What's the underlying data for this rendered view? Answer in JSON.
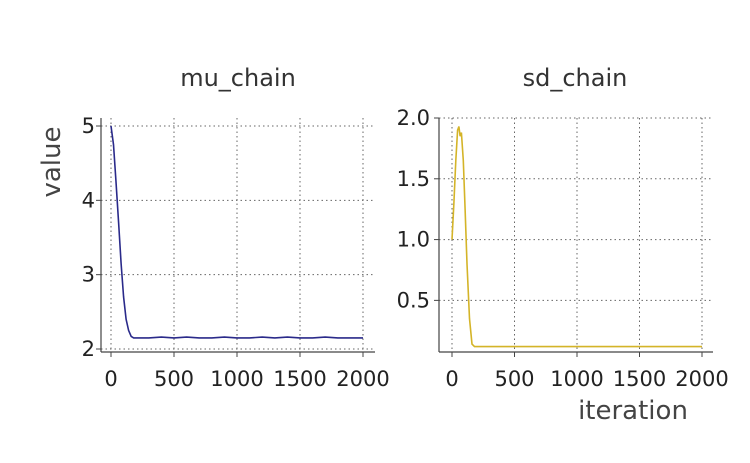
{
  "chart_data": [
    {
      "type": "line",
      "title": "mu_chain",
      "xlabel": "",
      "ylabel": "value",
      "xlim": [
        0,
        2000
      ],
      "ylim": [
        2,
        5
      ],
      "x_ticks": [
        0,
        500,
        1000,
        1500,
        2000
      ],
      "y_ticks": [
        2,
        3,
        4,
        5
      ],
      "grid": true,
      "color": "#2a2a8a",
      "series": [
        {
          "x": [
            0,
            20,
            40,
            60,
            80,
            100,
            120,
            140,
            160,
            180,
            200,
            300,
            400,
            500,
            600,
            700,
            800,
            900,
            1000,
            1100,
            1200,
            1300,
            1400,
            1500,
            1600,
            1700,
            1800,
            1900,
            2000
          ],
          "values": [
            5.0,
            4.75,
            4.25,
            3.7,
            3.15,
            2.7,
            2.4,
            2.25,
            2.17,
            2.15,
            2.15,
            2.15,
            2.16,
            2.15,
            2.16,
            2.15,
            2.15,
            2.16,
            2.15,
            2.15,
            2.16,
            2.15,
            2.16,
            2.15,
            2.15,
            2.16,
            2.15,
            2.15,
            2.15
          ]
        }
      ]
    },
    {
      "type": "line",
      "title": "sd_chain",
      "xlabel": "iteration",
      "ylabel": "",
      "xlim": [
        0,
        2000
      ],
      "ylim": [
        0.1,
        2.0
      ],
      "x_ticks": [
        0,
        500,
        1000,
        1500,
        2000
      ],
      "y_ticks": [
        2.0,
        1.5,
        1.0,
        0.5
      ],
      "y_tick_labels": [
        "2.0",
        "1.5",
        "1.0",
        "0.5"
      ],
      "grid": true,
      "color": "#d4b428",
      "series": [
        {
          "x": [
            0,
            15,
            30,
            45,
            55,
            65,
            75,
            90,
            105,
            120,
            140,
            160,
            180,
            200,
            300,
            400,
            500,
            600,
            700,
            800,
            900,
            1000,
            1100,
            1200,
            1300,
            1400,
            1500,
            1600,
            1700,
            1800,
            1900,
            2000
          ],
          "values": [
            1.0,
            1.3,
            1.65,
            1.9,
            1.93,
            1.85,
            1.88,
            1.65,
            1.25,
            0.8,
            0.35,
            0.14,
            0.12,
            0.12,
            0.12,
            0.12,
            0.12,
            0.12,
            0.12,
            0.12,
            0.12,
            0.12,
            0.12,
            0.12,
            0.12,
            0.12,
            0.12,
            0.12,
            0.12,
            0.12,
            0.12,
            0.12
          ]
        }
      ]
    }
  ]
}
